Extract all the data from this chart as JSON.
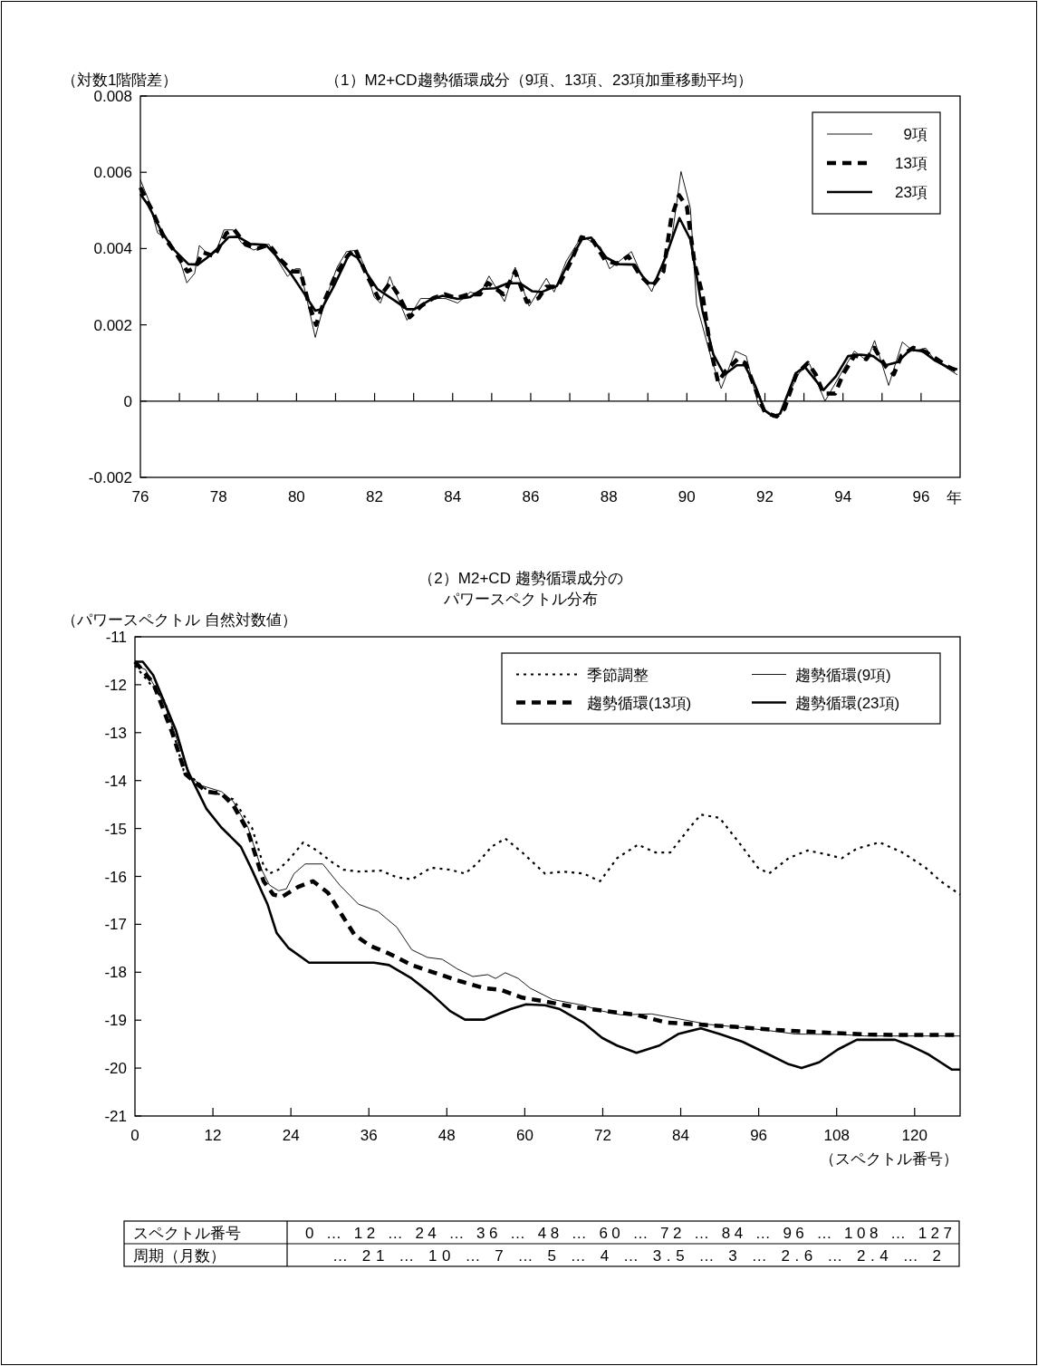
{
  "chart_data": [
    {
      "type": "line",
      "title": "（1）M2+CD趨勢循環成分（9項、13項、23項加重移動平均）",
      "ylabel": "（対数1階階差）",
      "xlabel": "年",
      "xlim": [
        76,
        97
      ],
      "ylim": [
        -0.002,
        0.008
      ],
      "xticks": [
        76,
        {
          "value": 77,
          "label": null
        },
        78,
        {
          "value": 79,
          "label": null
        },
        80,
        {
          "value": 81,
          "label": null
        },
        82,
        {
          "value": 83,
          "label": null
        },
        84,
        {
          "value": 85,
          "label": null
        },
        86,
        {
          "value": 87,
          "label": null
        },
        88,
        {
          "value": 89,
          "label": null
        },
        90,
        {
          "value": 91,
          "label": null
        },
        92,
        {
          "value": 93,
          "label": null
        },
        94,
        {
          "value": 95,
          "label": null
        },
        96
      ],
      "yticks": [
        -0.002,
        0,
        0.002,
        0.004,
        0.006,
        0.008
      ],
      "ref_lines": [
        {
          "axis": "y",
          "value": 0,
          "color": "#000000"
        }
      ],
      "grid": false,
      "legend": "top right",
      "series": [
        {
          "name": "9項",
          "color": "#000000",
          "line_style": "solid",
          "x": [
            76.0,
            76.2,
            76.44,
            76.75,
            76.99,
            77.19,
            77.39,
            77.51,
            77.79,
            77.94,
            78.14,
            78.38,
            78.58,
            78.9,
            79.29,
            79.53,
            79.77,
            79.97,
            80.09,
            80.33,
            80.48,
            80.72,
            81.04,
            81.28,
            81.56,
            81.75,
            81.99,
            82.15,
            82.39,
            82.55,
            82.83,
            83.18,
            83.5,
            83.82,
            84.13,
            84.45,
            84.69,
            84.93,
            85.33,
            85.6,
            85.96,
            86.4,
            86.6,
            86.91,
            87.31,
            87.79,
            88.02,
            88.58,
            88.82,
            89.1,
            89.61,
            89.85,
            90.09,
            90.25,
            90.64,
            90.88,
            91.24,
            91.52,
            91.83,
            92.07,
            92.31,
            92.87,
            93.14,
            93.54,
            93.98,
            94.29,
            94.61,
            94.81,
            95.17,
            95.52,
            95.8,
            96.12,
            96.36,
            96.93
          ],
          "values": [
            0.0058,
            0.0053,
            0.00441,
            0.0042,
            0.00376,
            0.0031,
            0.00335,
            0.00408,
            0.0038,
            0.00392,
            0.00449,
            0.00449,
            0.00416,
            0.00396,
            0.00412,
            0.00367,
            0.00327,
            0.00347,
            0.00347,
            0.00237,
            0.00167,
            0.00261,
            0.00351,
            0.00392,
            0.00396,
            0.00351,
            0.00273,
            0.00257,
            0.00327,
            0.00282,
            0.00212,
            0.00269,
            0.00269,
            0.00269,
            0.00257,
            0.00286,
            0.00278,
            0.00328,
            0.00261,
            0.00351,
            0.00249,
            0.00322,
            0.00286,
            0.00367,
            0.00433,
            0.00404,
            0.00347,
            0.00392,
            0.00335,
            0.00287,
            0.00424,
            0.00602,
            0.00506,
            0.00253,
            0.00106,
            0.00033,
            0.00131,
            0.00118,
            -0.0001,
            -0.00033,
            -0.00045,
            0.00073,
            0.00098,
            0,
            0.00078,
            0.00131,
            0.00106,
            0.00159,
            0.00041,
            0.00155,
            0.00131,
            0.00139,
            0.00106,
            0.00069
          ]
        },
        {
          "name": "13項",
          "color": "#000000",
          "line_style": "dashed",
          "x": [
            76.0,
            76.3,
            76.6,
            76.9,
            77.2,
            77.4,
            77.6,
            77.9,
            78.2,
            78.4,
            78.7,
            79.0,
            79.3,
            79.6,
            79.9,
            80.1,
            80.3,
            80.5,
            80.7,
            81.0,
            81.3,
            81.5,
            81.8,
            82.1,
            82.4,
            82.6,
            82.9,
            83.2,
            83.5,
            83.8,
            84.1,
            84.4,
            84.7,
            84.9,
            85.3,
            85.6,
            85.9,
            86.2,
            86.4,
            86.7,
            87.0,
            87.3,
            87.6,
            87.9,
            88.2,
            88.5,
            88.8,
            89.1,
            89.4,
            89.6,
            89.8,
            90.0,
            90.2,
            90.4,
            90.6,
            90.8,
            91.0,
            91.3,
            91.5,
            91.8,
            92.0,
            92.3,
            92.5,
            92.8,
            93.1,
            93.3,
            93.5,
            93.8,
            94.0,
            94.3,
            94.6,
            94.8,
            95.1,
            95.3,
            95.5,
            95.8,
            96.1,
            96.4,
            96.7,
            96.9
          ],
          "values": [
            0.0056,
            0.005,
            0.0043,
            0.0039,
            0.0034,
            0.0035,
            0.0039,
            0.0038,
            0.0044,
            0.0045,
            0.0041,
            0.004,
            0.0041,
            0.0037,
            0.0034,
            0.0034,
            0.0026,
            0.002,
            0.0026,
            0.0033,
            0.0038,
            0.004,
            0.0033,
            0.0027,
            0.0031,
            0.0028,
            0.0022,
            0.0025,
            0.0027,
            0.0028,
            0.0027,
            0.0028,
            0.0028,
            0.0031,
            0.0028,
            0.0034,
            0.0026,
            0.0027,
            0.003,
            0.003,
            0.0036,
            0.0043,
            0.0042,
            0.0037,
            0.0036,
            0.0038,
            0.0033,
            0.003,
            0.0034,
            0.0048,
            0.0054,
            0.0051,
            0.0036,
            0.0028,
            0.0014,
            0.0005,
            0.0008,
            0.0011,
            0.001,
            0.0002,
            -0.0003,
            -0.0004,
            -0.0002,
            0.0007,
            0.001,
            0.0007,
            0.0002,
            0.0002,
            0.0007,
            0.0012,
            0.0011,
            0.0014,
            0.0009,
            0.0007,
            0.0012,
            0.0014,
            0.0013,
            0.0011,
            0.0009,
            0.0008
          ]
        },
        {
          "name": "23項",
          "color": "#000000",
          "line_style": "solid",
          "x": [
            76.0,
            76.2,
            76.52,
            76.83,
            77.23,
            77.47,
            77.71,
            78.02,
            78.26,
            78.5,
            78.82,
            79.21,
            79.45,
            79.85,
            80.17,
            80.48,
            80.64,
            80.96,
            81.36,
            81.56,
            81.75,
            82.07,
            82.55,
            82.83,
            83.02,
            83.42,
            83.74,
            84.13,
            84.45,
            84.77,
            85.09,
            85.41,
            85.72,
            86.04,
            86.28,
            86.67,
            86.99,
            87.31,
            87.55,
            87.94,
            88.26,
            88.66,
            88.98,
            89.17,
            89.45,
            89.81,
            90.09,
            90.4,
            90.68,
            90.96,
            91.28,
            91.48,
            91.75,
            91.99,
            92.23,
            92.39,
            92.79,
            93.02,
            93.5,
            93.82,
            94.13,
            94.45,
            94.77,
            95.09,
            95.4,
            95.72,
            96.04,
            96.36,
            96.67,
            96.93
          ],
          "values": [
            0.00543,
            0.00514,
            0.00449,
            0.004,
            0.00359,
            0.00358,
            0.00376,
            0.00404,
            0.0043,
            0.00431,
            0.00412,
            0.0041,
            0.00384,
            0.00335,
            0.00286,
            0.00237,
            0.00241,
            0.00302,
            0.00388,
            0.00376,
            0.00343,
            0.00294,
            0.00261,
            0.00241,
            0.00241,
            0.00265,
            0.00276,
            0.00268,
            0.00273,
            0.00294,
            0.00296,
            0.00309,
            0.00309,
            0.00288,
            0.00286,
            0.00302,
            0.00367,
            0.00424,
            0.00429,
            0.00376,
            0.00359,
            0.00358,
            0.0031,
            0.00309,
            0.00376,
            0.0048,
            0.00424,
            0.00237,
            0.00122,
            0.00069,
            0.00094,
            0.00094,
            0.00041,
            -0.00024,
            -0.00041,
            -0.00033,
            0.00073,
            0.0009,
            0.00029,
            0.00065,
            0.00118,
            0.00122,
            0.00118,
            0.00094,
            0.00102,
            0.00135,
            0.00131,
            0.00106,
            0.0009,
            0.00083
          ]
        }
      ]
    },
    {
      "type": "line",
      "title": "（2）M2+CD 趨勢循環成分の",
      "subtitle": "パワースペクトル分布",
      "ylabel": "（パワースペクトル 自然対数値）",
      "xlabel": "（スペクトル番号）",
      "xlim": [
        0,
        127
      ],
      "ylim": [
        -21,
        -11
      ],
      "xticks": [
        0,
        12,
        24,
        36,
        48,
        60,
        72,
        84,
        96,
        108,
        120
      ],
      "yticks": [
        -21,
        -20,
        -19,
        -18,
        -17,
        -16,
        -15,
        -14,
        -13,
        -12,
        -11
      ],
      "grid": false,
      "legend": "top right",
      "series": [
        {
          "name": "季節調整",
          "color": "#000000",
          "line_style": "dotted",
          "x": [
            0,
            4.6,
            7.5,
            11,
            15.1,
            18,
            19.8,
            20.7,
            22.1,
            23.9,
            25.9,
            28,
            30.3,
            32.1,
            34.4,
            37.9,
            40.3,
            42.6,
            45.6,
            48.5,
            50.8,
            52.6,
            54.9,
            57,
            59.6,
            63.1,
            66,
            69,
            71.6,
            74.2,
            77.4,
            80.1,
            82.4,
            85.4,
            87.1,
            90,
            93,
            95.9,
            97.6,
            100.6,
            103.5,
            106.4,
            108.8,
            111.1,
            114.6,
            118.1,
            121.7,
            124,
            127
          ],
          "values": [
            -11.6,
            -12.35,
            -13.79,
            -14.19,
            -14.39,
            -14.98,
            -15.78,
            -15.94,
            -15.86,
            -15.62,
            -15.29,
            -15.46,
            -15.7,
            -15.86,
            -15.9,
            -15.88,
            -16.02,
            -16.06,
            -15.82,
            -15.86,
            -15.94,
            -15.74,
            -15.38,
            -15.21,
            -15.5,
            -15.94,
            -15.9,
            -15.94,
            -16.1,
            -15.62,
            -15.34,
            -15.5,
            -15.5,
            -14.98,
            -14.71,
            -14.78,
            -15.3,
            -15.82,
            -15.94,
            -15.62,
            -15.46,
            -15.54,
            -15.62,
            -15.42,
            -15.29,
            -15.5,
            -15.82,
            -16.1,
            -16.38
          ]
        },
        {
          "name": "趨勢循環(9項)",
          "color": "#000000",
          "line_style": "solid",
          "x": [
            0,
            1.6,
            4.6,
            6.9,
            8.7,
            10.4,
            13.3,
            15.1,
            17.4,
            19.5,
            20.7,
            22.1,
            23.3,
            24.5,
            26.2,
            28.9,
            31.5,
            34.4,
            37.4,
            40.3,
            42.6,
            45,
            47.3,
            49.6,
            52,
            54.3,
            55.5,
            57,
            59,
            60.8,
            64.3,
            69,
            71.9,
            74.8,
            79.5,
            83.6,
            88.3,
            92.4,
            97.1,
            101.7,
            108.8,
            112.3,
            127
          ],
          "values": [
            -11.6,
            -11.68,
            -12.43,
            -13.31,
            -13.95,
            -14.11,
            -14.23,
            -14.43,
            -14.98,
            -15.86,
            -16.18,
            -16.3,
            -16.26,
            -15.94,
            -15.74,
            -15.74,
            -16.18,
            -16.58,
            -16.73,
            -17.06,
            -17.53,
            -17.69,
            -17.73,
            -17.93,
            -18.09,
            -18.05,
            -18.13,
            -18.01,
            -18.13,
            -18.33,
            -18.57,
            -18.69,
            -18.81,
            -18.89,
            -18.87,
            -18.97,
            -19.09,
            -19.14,
            -19.21,
            -19.29,
            -19.3,
            -19.33,
            -19.33
          ]
        },
        {
          "name": "趨勢循環(13項)",
          "color": "#000000",
          "line_style": "dashed",
          "x": [
            0,
            2.8,
            5.7,
            7.8,
            11,
            13.3,
            15.1,
            17.4,
            19.8,
            21.3,
            22.7,
            25.1,
            27.4,
            29.7,
            31.5,
            33.8,
            36.2,
            39.1,
            42.6,
            46.1,
            49.6,
            53.7,
            56.4,
            59.6,
            63.1,
            67.8,
            72.5,
            77.2,
            81.8,
            86.5,
            92.4,
            99.4,
            106.4,
            112.9,
            118.7,
            127
          ],
          "values": [
            -11.52,
            -11.96,
            -12.99,
            -13.87,
            -14.23,
            -14.27,
            -14.51,
            -15.06,
            -16.1,
            -16.38,
            -16.42,
            -16.22,
            -16.1,
            -16.34,
            -16.73,
            -17.22,
            -17.45,
            -17.61,
            -17.85,
            -18.01,
            -18.17,
            -18.33,
            -18.37,
            -18.53,
            -18.61,
            -18.73,
            -18.81,
            -18.89,
            -19.05,
            -19.09,
            -19.14,
            -19.21,
            -19.26,
            -19.3,
            -19.31,
            -19.31
          ]
        },
        {
          "name": "趨勢循環(23項)",
          "color": "#000000",
          "line_style": "solid",
          "x": [
            0,
            1.2,
            2.8,
            6.3,
            8.1,
            11,
            13.3,
            16.3,
            18,
            20.4,
            21.8,
            23.6,
            26.8,
            28.6,
            36.8,
            39.1,
            42.6,
            45.6,
            48.5,
            50.8,
            53.7,
            57.8,
            60.2,
            63.1,
            65.4,
            69,
            71.9,
            74.2,
            77.2,
            80.7,
            83.6,
            87.1,
            90,
            93.5,
            97.6,
            100.6,
            102.6,
            105.3,
            108.2,
            111.1,
            117,
            119.3,
            122.2,
            124,
            125.7,
            127
          ],
          "values": [
            -11.52,
            -11.52,
            -11.8,
            -12.95,
            -13.79,
            -14.59,
            -14.98,
            -15.38,
            -15.86,
            -16.58,
            -17.18,
            -17.49,
            -17.8,
            -17.8,
            -17.8,
            -17.85,
            -18.13,
            -18.45,
            -18.81,
            -18.99,
            -18.99,
            -18.77,
            -18.67,
            -18.69,
            -18.77,
            -19.05,
            -19.37,
            -19.53,
            -19.68,
            -19.53,
            -19.29,
            -19.17,
            -19.29,
            -19.45,
            -19.72,
            -19.92,
            -20.0,
            -19.88,
            -19.61,
            -19.41,
            -19.41,
            -19.53,
            -19.72,
            -19.88,
            -20.03,
            -20.03
          ]
        }
      ]
    },
    {
      "type": "other",
      "annotations": [
        "スペクトル番号",
        "0 … 12 … 24 … 36 … 48 … 60 … 72 … 84 … 96 … 108 … 127",
        "周期（月数）",
        "… 21 … 10 … 7 … 5 … 4 … 3.5 … 3 … 2.6 … 2.4 … 2"
      ]
    }
  ]
}
